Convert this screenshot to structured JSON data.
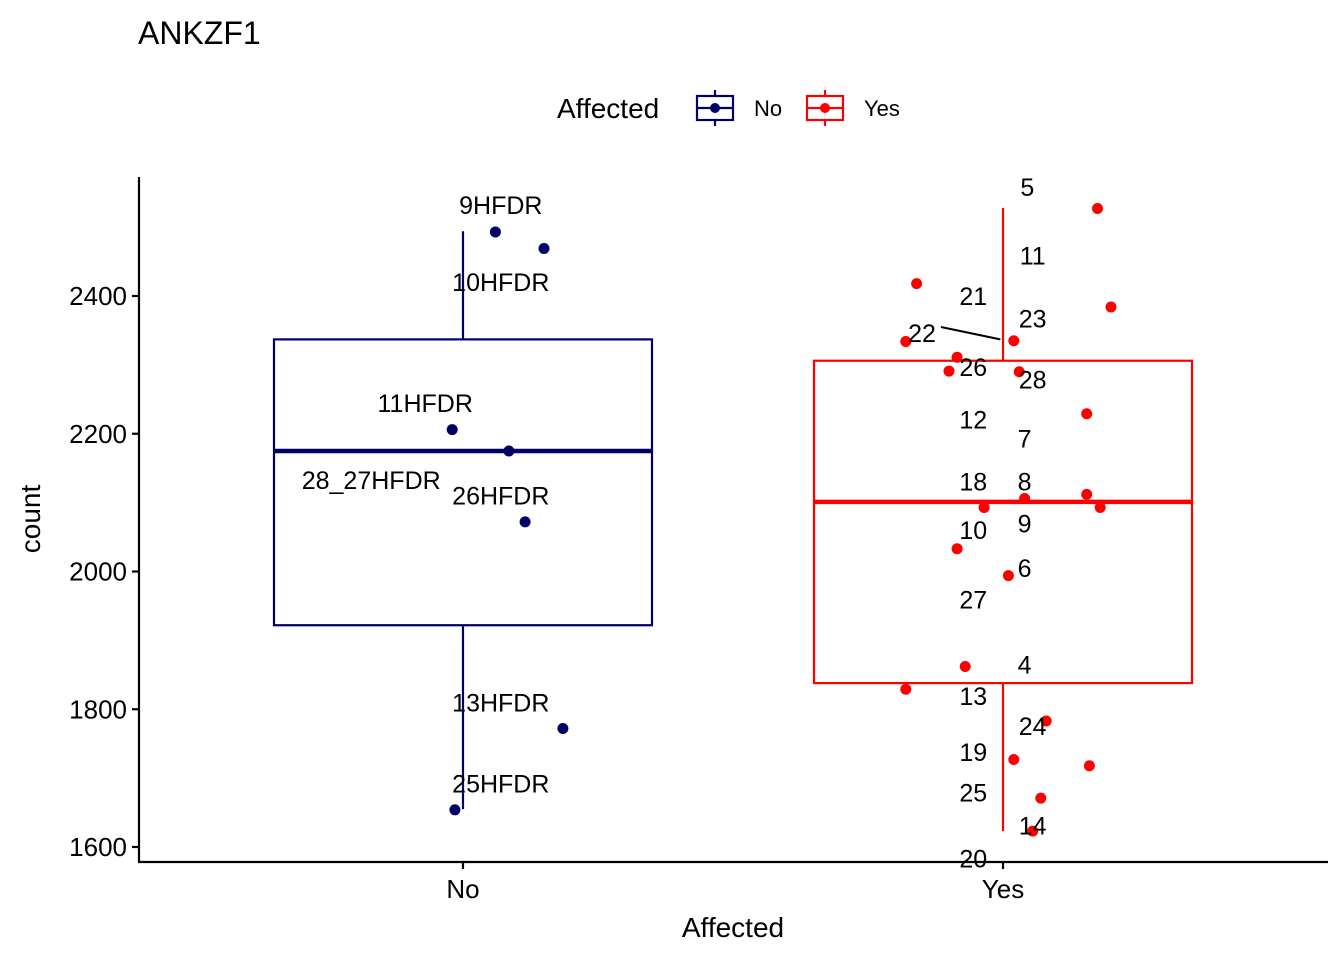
{
  "chart_data": {
    "type": "box",
    "title": "ANKZF1",
    "xlabel": "Affected",
    "ylabel": "count",
    "ylim": [
      1585,
      2570
    ],
    "yticks": [
      1600,
      1800,
      2000,
      2200,
      2400
    ],
    "ytick_labels": [
      "1600",
      "1800",
      "2000",
      "2200",
      "2400"
    ],
    "categories": [
      "No",
      "Yes"
    ],
    "legend": {
      "title": "Affected",
      "position": "top",
      "entries": [
        {
          "label": "No",
          "color": "#000066"
        },
        {
          "label": "Yes",
          "color": "#ff0000"
        }
      ]
    },
    "grid": false,
    "series": [
      {
        "category": "No",
        "color": "#000066",
        "box": {
          "lower_whisker": 1655,
          "q1": 1922,
          "median": 2175,
          "q3": 2337,
          "upper_whisker": 2494
        },
        "points": [
          {
            "label": "9HFDR",
            "y": 2493,
            "jitter": 0.06,
            "label_dx": 0.07,
            "label_y": 2532
          },
          {
            "label": "10HFDR",
            "y": 2469,
            "jitter": 0.15,
            "label_dx": 0.07,
            "label_y": 2420
          },
          {
            "label": "11HFDR",
            "y": 2206,
            "jitter": -0.02,
            "label_dx": -0.07,
            "label_y": 2245
          },
          {
            "label": "28_27HFDR",
            "y": 2175,
            "jitter": 0.085,
            "label_dx": -0.17,
            "label_y": 2133
          },
          {
            "label": "26HFDR",
            "y": 2072,
            "jitter": 0.115,
            "label_dx": 0.07,
            "label_y": 2110
          },
          {
            "label": "13HFDR",
            "y": 1772,
            "jitter": 0.185,
            "label_dx": 0.07,
            "label_y": 1810
          },
          {
            "label": "25HFDR",
            "y": 1654,
            "jitter": -0.015,
            "label_dx": 0.07,
            "label_y": 1692
          }
        ]
      },
      {
        "category": "Yes",
        "color": "#ff0000",
        "box": {
          "lower_whisker": 1623,
          "q1": 1838,
          "median": 2101,
          "q3": 2306,
          "upper_whisker": 2528
        },
        "points": [
          {
            "label": "5",
            "y": 2527,
            "jitter": 0.175,
            "label_dx": 0.045,
            "label_y": 2558
          },
          {
            "label": "11",
            "y": 2384,
            "jitter": 0.2,
            "label_dx": 0.055,
            "label_y": 2459
          },
          {
            "label": "21",
            "y": 2418,
            "jitter": -0.16,
            "label_dx": -0.055,
            "label_y": 2400
          },
          {
            "label": "22",
            "y": 2334,
            "jitter": -0.18,
            "label_dx": -0.15,
            "label_y": 2346,
            "leader": [
              -0.115,
              2355,
              -0.005,
              2337
            ]
          },
          {
            "label": "23",
            "y": 2335,
            "jitter": 0.02,
            "label_dx": 0.055,
            "label_y": 2367
          },
          {
            "label": "26",
            "y": 2311,
            "jitter": -0.085,
            "label_dx": -0.055,
            "label_y": 2297
          },
          {
            "label": "28",
            "y": 2290,
            "jitter": 0.03,
            "label_dx": 0.055,
            "label_y": 2279
          },
          {
            "label": "12",
            "y": 2291,
            "jitter": -0.1,
            "label_dx": -0.055,
            "label_y": 2221
          },
          {
            "label": "7",
            "y": 2229,
            "jitter": 0.155,
            "label_dx": 0.04,
            "label_y": 2193
          },
          {
            "label": "18",
            "y": 2112,
            "jitter": 0.155,
            "label_dx": -0.055,
            "label_y": 2131
          },
          {
            "label": "8",
            "y": 2106,
            "jitter": 0.04,
            "label_dx": 0.04,
            "label_y": 2131
          },
          {
            "label": "9",
            "y": 2093,
            "jitter": 0.18,
            "label_dx": 0.04,
            "label_y": 2070
          },
          {
            "label": "10",
            "y": 2093,
            "jitter": -0.035,
            "label_dx": -0.055,
            "label_y": 2060
          },
          {
            "label": "6",
            "y": 2033,
            "jitter": -0.085,
            "label_dx": 0.04,
            "label_y": 2005
          },
          {
            "label": "27",
            "y": 1994,
            "jitter": 0.01,
            "label_dx": -0.055,
            "label_y": 1959
          },
          {
            "label": "4",
            "y": 1862,
            "jitter": -0.07,
            "label_dx": 0.04,
            "label_y": 1865
          },
          {
            "label": "13",
            "y": 1829,
            "jitter": -0.18,
            "label_dx": -0.055,
            "label_y": 1819
          },
          {
            "label": "24",
            "y": 1783,
            "jitter": 0.08,
            "label_dx": 0.055,
            "label_y": 1776
          },
          {
            "label": "19",
            "y": 1727,
            "jitter": 0.02,
            "label_dx": -0.055,
            "label_y": 1738
          },
          {
            "label": "25",
            "y": 1718,
            "jitter": 0.16,
            "label_dx": -0.055,
            "label_y": 1679
          },
          {
            "label": "14",
            "y": 1671,
            "jitter": 0.07,
            "label_dx": 0.055,
            "label_y": 1631
          },
          {
            "label": "20",
            "y": 1623,
            "jitter": 0.055,
            "label_dx": -0.055,
            "label_y": 1583
          }
        ]
      }
    ]
  }
}
